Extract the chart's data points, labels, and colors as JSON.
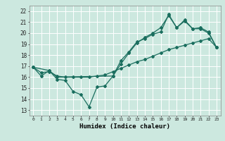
{
  "xlabel": "Humidex (Indice chaleur)",
  "background_color": "#cce8df",
  "grid_color": "#ffffff",
  "line_color": "#1a6e5e",
  "xlim": [
    -0.5,
    23.5
  ],
  "ylim": [
    12.5,
    22.5
  ],
  "yticks": [
    13,
    14,
    15,
    16,
    17,
    18,
    19,
    20,
    21,
    22
  ],
  "xticks": [
    0,
    1,
    2,
    3,
    4,
    5,
    6,
    7,
    8,
    9,
    10,
    11,
    12,
    13,
    14,
    15,
    16,
    17,
    18,
    19,
    20,
    21,
    22,
    23
  ],
  "line1_x": [
    0,
    1,
    2,
    3,
    4,
    5,
    6,
    7,
    8,
    9,
    10,
    11,
    12,
    13,
    14,
    15,
    16,
    17,
    18,
    19,
    20,
    21,
    22,
    23
  ],
  "line1_y": [
    16.9,
    16.1,
    16.6,
    15.8,
    15.7,
    14.7,
    14.4,
    13.3,
    15.1,
    15.2,
    16.1,
    17.5,
    18.3,
    19.2,
    19.5,
    19.9,
    20.1,
    21.7,
    20.5,
    21.1,
    20.4,
    20.4,
    20.0,
    18.7
  ],
  "line2_x": [
    0,
    1,
    2,
    3,
    4,
    5,
    6,
    7,
    8,
    9,
    10,
    11,
    12,
    13,
    14,
    15,
    16,
    17,
    18,
    19,
    20,
    21,
    22,
    23
  ],
  "line2_y": [
    16.9,
    16.4,
    16.5,
    16.1,
    16.0,
    16.0,
    16.0,
    16.0,
    16.1,
    16.2,
    16.5,
    16.8,
    17.1,
    17.4,
    17.6,
    17.9,
    18.2,
    18.5,
    18.7,
    18.9,
    19.1,
    19.3,
    19.5,
    18.7
  ],
  "line3_x": [
    0,
    2,
    3,
    10,
    11,
    12,
    13,
    14,
    15,
    16,
    17,
    18,
    19,
    20,
    21,
    22,
    23
  ],
  "line3_y": [
    16.9,
    16.6,
    16.0,
    16.1,
    17.2,
    18.2,
    19.1,
    19.6,
    20.0,
    20.5,
    21.6,
    20.5,
    21.2,
    20.4,
    20.5,
    20.1,
    18.7
  ]
}
